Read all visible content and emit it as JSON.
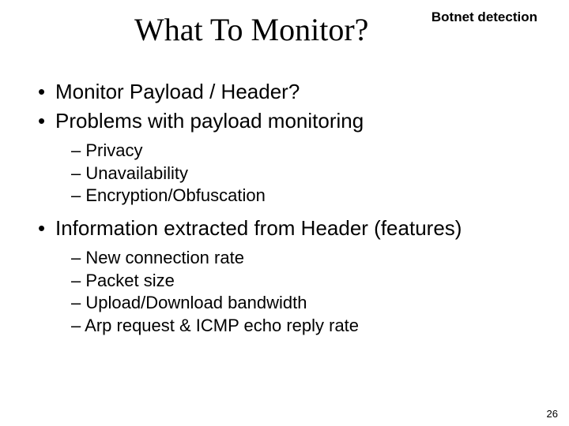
{
  "header_label": "Botnet detection",
  "title": "What To Monitor?",
  "bullets": {
    "b1": "Monitor Payload / Header?",
    "b2": "Problems with payload monitoring",
    "b2_subs": {
      "s1": "Privacy",
      "s2": "Unavailability",
      "s3": "Encryption/Obfuscation"
    },
    "b3": "Information extracted from Header (features)",
    "b3_subs": {
      "s1": "New connection rate",
      "s2": "Packet size",
      "s3": "Upload/Download bandwidth",
      "s4": "Arp request & ICMP echo reply rate"
    }
  },
  "page_number": "26",
  "colors": {
    "background": "#ffffff",
    "text": "#000000"
  },
  "typography": {
    "title_fontsize": 40,
    "header_fontsize": 17,
    "bullet1_fontsize": 26,
    "bullet2_fontsize": 22,
    "pagenum_fontsize": 13,
    "title_font": "Times New Roman",
    "body_font": "Arial"
  },
  "markers": {
    "level1": "•",
    "level2": "–"
  }
}
